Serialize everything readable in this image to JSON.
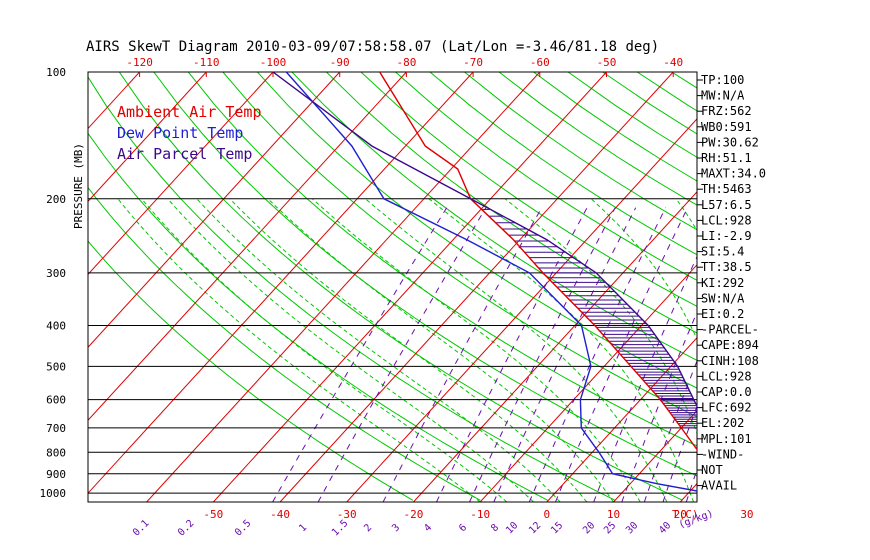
{
  "chart_data": {
    "type": "line",
    "title": "AIRS SkewT Diagram 2010-03-09/07:58:58.07 (Lat/Lon =-3.46/81.18 deg)",
    "ylabel": "PRESSURE (MB)",
    "pressure_ticks": [
      100,
      200,
      300,
      400,
      500,
      600,
      700,
      800,
      900,
      1000
    ],
    "top_temp_ticks": [
      -120,
      -110,
      -100,
      -90,
      -80,
      -70,
      -60,
      -50,
      -40
    ],
    "bottom_temp_ticks": [
      -50,
      -40,
      -30,
      -20,
      -10,
      0,
      10,
      20,
      30
    ],
    "bottom_temp_unit": "T(C)",
    "mixing_ratio_labels": [
      "0.1",
      "0.2",
      "0.5",
      "1",
      "1.5",
      "2",
      "3",
      "4",
      "6",
      "8",
      "10",
      "12",
      "15",
      "20",
      "25",
      "30",
      "40"
    ],
    "mixing_ratio_unit": "(g/kg)",
    "legend": [
      {
        "name": "Ambient Air Temp",
        "color": "#e00000"
      },
      {
        "name": "Dew Point Temp",
        "color": "#1f1fd0"
      },
      {
        "name": "Air Parcel Temp",
        "color": "#3b0a8c"
      }
    ],
    "series": [
      {
        "name": "Ambient Air Temp",
        "color": "#e00000",
        "points": [
          [
            1000,
            28
          ],
          [
            950,
            23
          ],
          [
            900,
            21
          ],
          [
            800,
            16
          ],
          [
            700,
            10
          ],
          [
            600,
            3
          ],
          [
            500,
            -6
          ],
          [
            400,
            -17
          ],
          [
            300,
            -32
          ],
          [
            250,
            -41
          ],
          [
            200,
            -53
          ],
          [
            170,
            -59
          ],
          [
            150,
            -67
          ],
          [
            100,
            -84
          ]
        ]
      },
      {
        "name": "Dew Point Temp",
        "color": "#1f1fd0",
        "points": [
          [
            1000,
            23
          ],
          [
            950,
            14
          ],
          [
            900,
            6
          ],
          [
            800,
            1
          ],
          [
            700,
            -5
          ],
          [
            600,
            -9
          ],
          [
            500,
            -12
          ],
          [
            400,
            -19
          ],
          [
            300,
            -34
          ],
          [
            250,
            -48
          ],
          [
            200,
            -66
          ],
          [
            150,
            -78
          ],
          [
            100,
            -98
          ]
        ]
      },
      {
        "name": "Air Parcel Temp",
        "color": "#3b0a8c",
        "points": [
          [
            1000,
            28
          ],
          [
            928,
            23.5
          ],
          [
            900,
            22.5
          ],
          [
            800,
            18.5
          ],
          [
            700,
            14
          ],
          [
            600,
            8
          ],
          [
            500,
            1
          ],
          [
            400,
            -9
          ],
          [
            300,
            -24
          ],
          [
            250,
            -36
          ],
          [
            200,
            -53
          ],
          [
            150,
            -75
          ],
          [
            100,
            -100
          ]
        ]
      }
    ]
  },
  "indices": [
    "TP:100",
    "MW:N/A",
    "FRZ:562",
    "WB0:591",
    "PW:30.62",
    "RH:51.1",
    "MAXT:34.0",
    "TH:5463",
    "L57:6.5",
    "LCL:928",
    "LI:-2.9",
    "SI:5.4",
    "TT:38.5",
    "KI:292",
    "SW:N/A",
    "EI:0.2",
    "-PARCEL-",
    "CAPE:894",
    "CINH:108",
    "LCL:928",
    "CAP:0.0",
    "LFC:692",
    "EL:202",
    "MPL:101",
    "-WIND-",
    "NOT",
    "AVAIL"
  ],
  "colors": {
    "grid": "#000000",
    "isotherm": "#e00000",
    "dry_adiabat": "#00c800",
    "moist_adiabat": "#00c800",
    "mixing_ratio": "#6a0dad",
    "hatch": "#3b0a8c"
  }
}
